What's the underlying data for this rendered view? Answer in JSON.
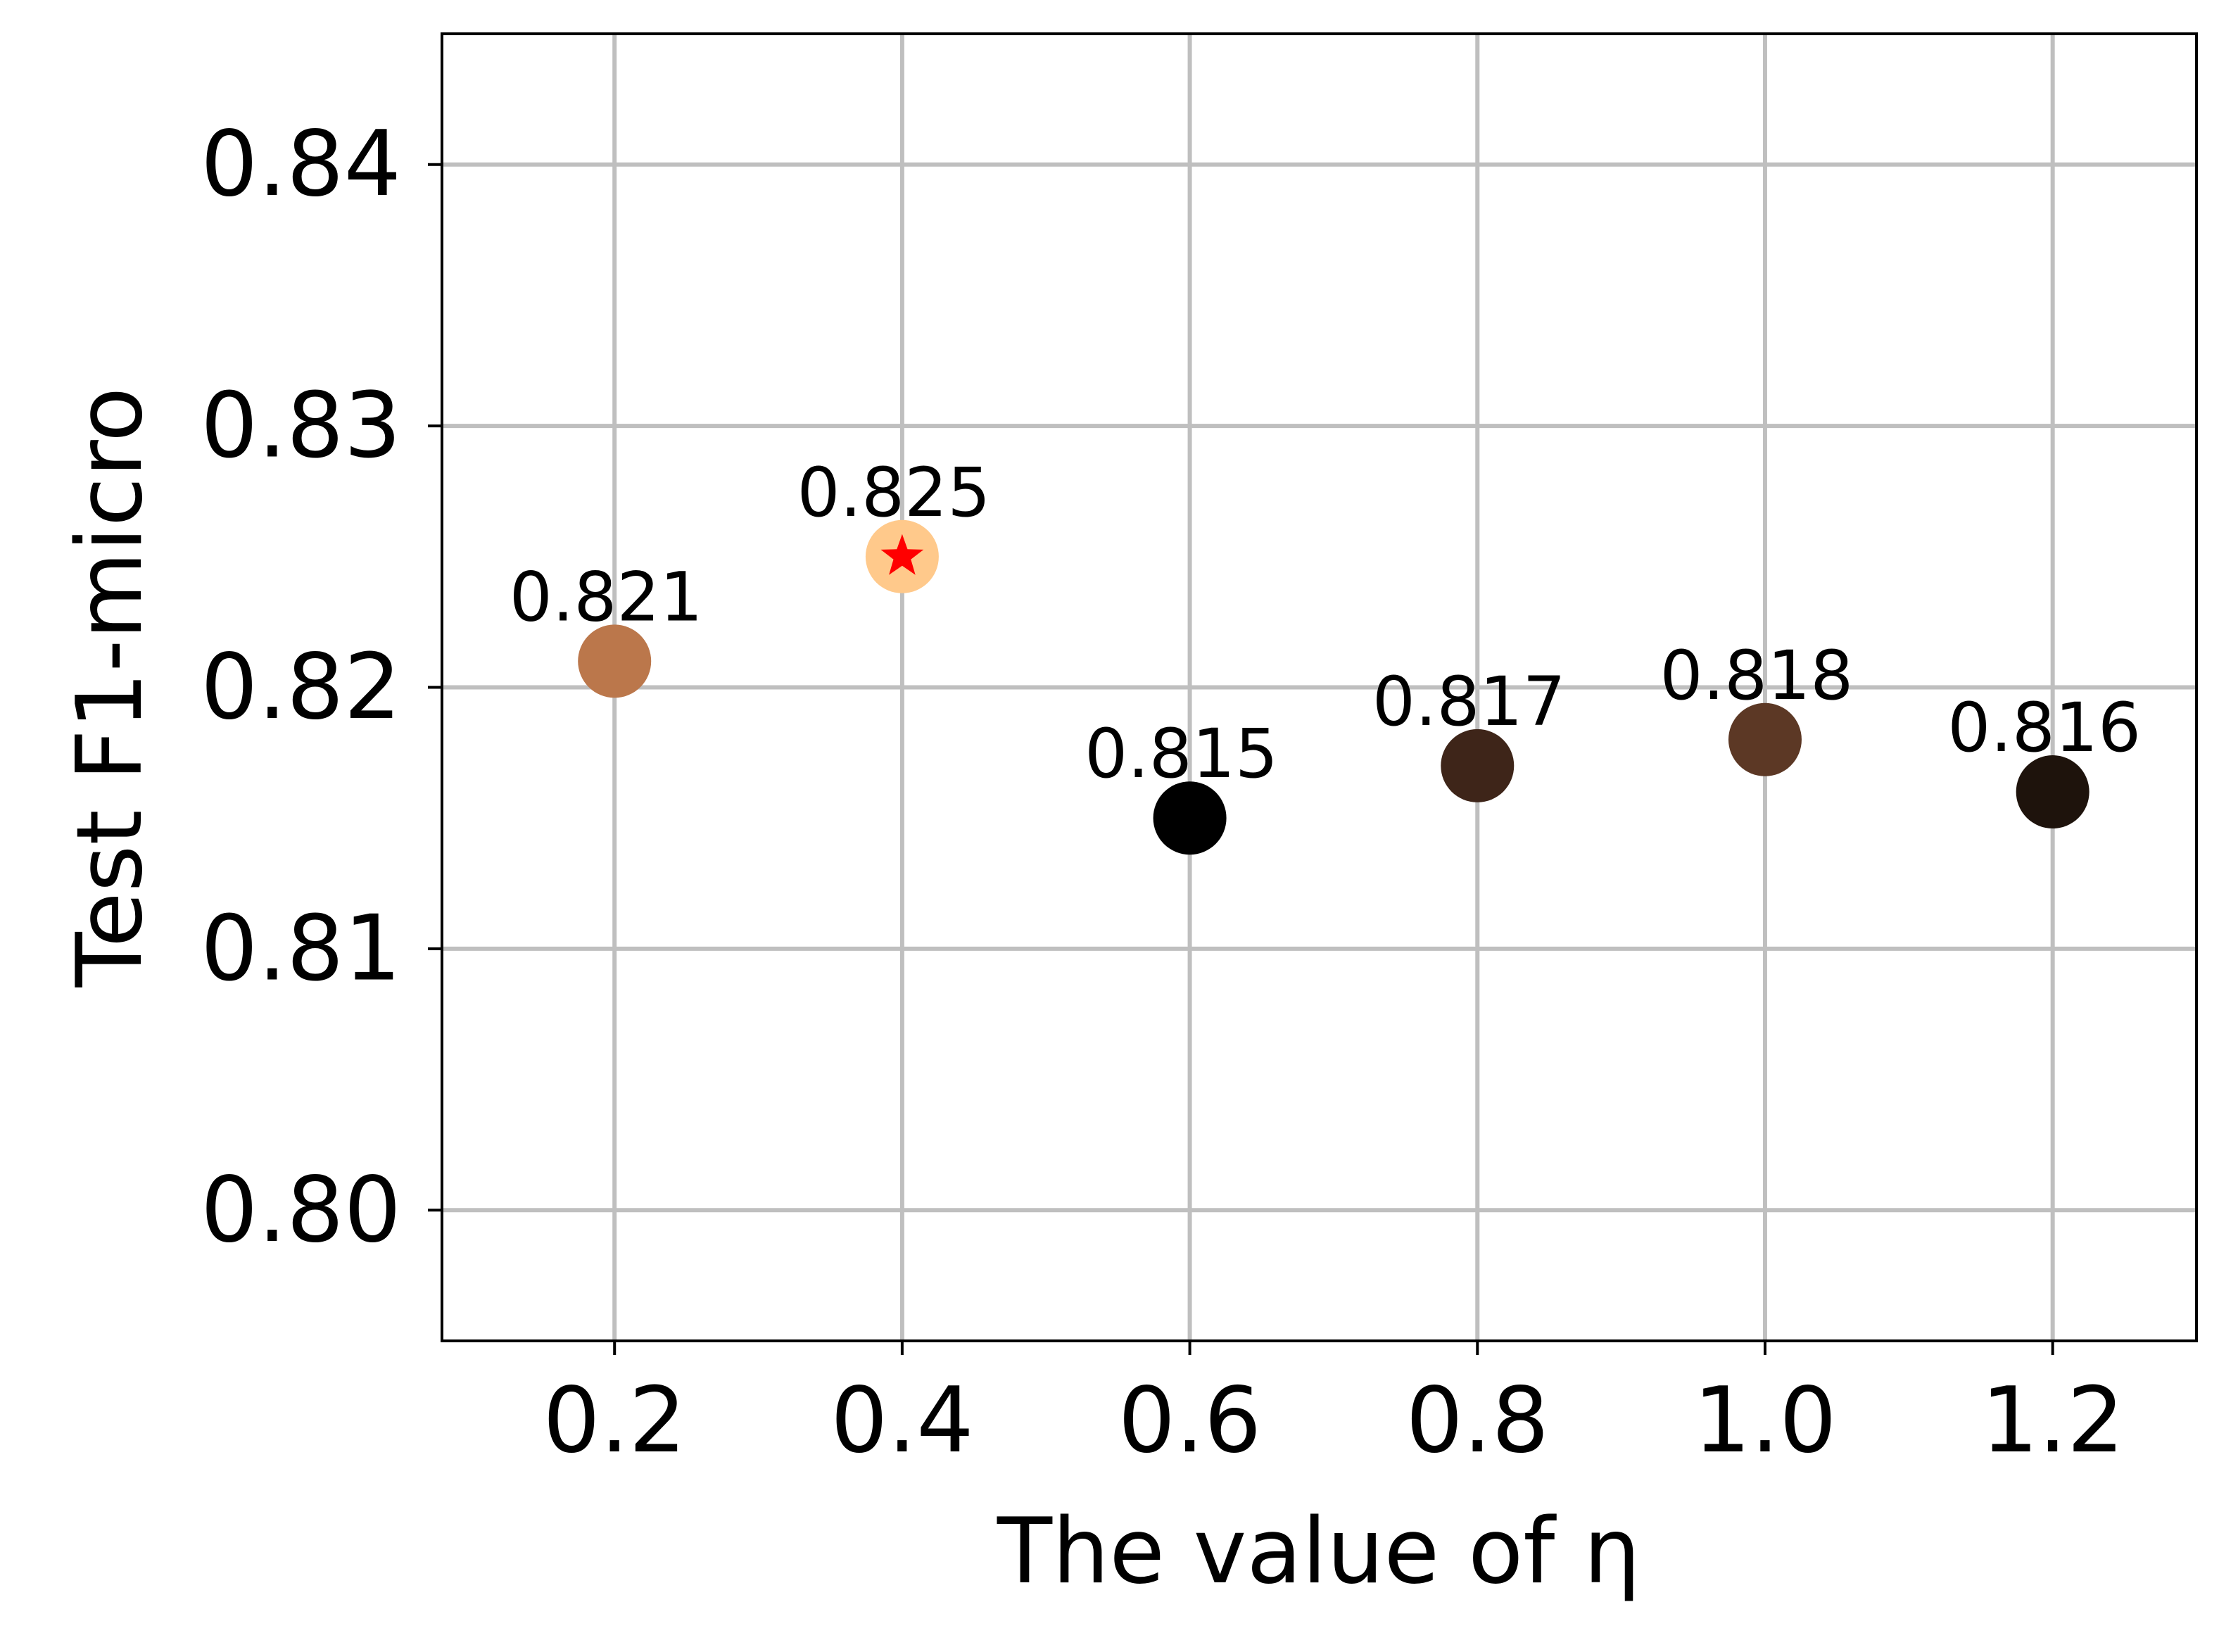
{
  "chart_data": {
    "type": "scatter",
    "title": "",
    "xlabel": "The value of η",
    "ylabel": "Test F1-micro",
    "xlim": [
      0.08,
      1.3
    ],
    "ylim": [
      0.795,
      0.845
    ],
    "x_ticks": [
      0.2,
      0.4,
      0.6,
      0.8,
      1.0,
      1.2
    ],
    "x_tick_labels": [
      "0.2",
      "0.4",
      "0.6",
      "0.8",
      "1.0",
      "1.2"
    ],
    "y_ticks": [
      0.8,
      0.81,
      0.82,
      0.83,
      0.84
    ],
    "y_tick_labels": [
      "0.80",
      "0.81",
      "0.82",
      "0.83",
      "0.84"
    ],
    "grid": true,
    "points": [
      {
        "x": 0.2,
        "y": 0.821,
        "label": "0.821",
        "color": "#bb774b"
      },
      {
        "x": 0.4,
        "y": 0.825,
        "label": "0.825",
        "color": "#ffc98b",
        "highlight": true,
        "marker_color": "#ff0000"
      },
      {
        "x": 0.6,
        "y": 0.815,
        "label": "0.815",
        "color": "#000000"
      },
      {
        "x": 0.8,
        "y": 0.817,
        "label": "0.817",
        "color": "#3e2519"
      },
      {
        "x": 1.0,
        "y": 0.818,
        "label": "0.818",
        "color": "#5c3825"
      },
      {
        "x": 1.2,
        "y": 0.816,
        "label": "0.816",
        "color": "#1e130c"
      }
    ],
    "grid_color": "#bfbfbf"
  }
}
